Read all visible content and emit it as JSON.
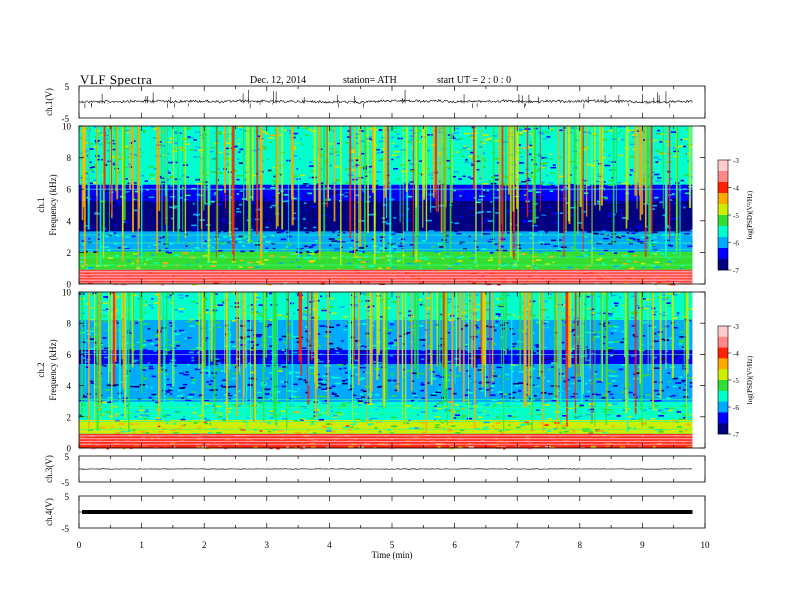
{
  "header": {
    "title": "VLF Spectra",
    "date": "Dec. 12, 2014",
    "station": "station= ATH",
    "start_ut": "start  UT  =   2  : 0  : 0"
  },
  "chart_data": [
    {
      "panel": "ch1-waveform",
      "type": "line",
      "ylabel": "ch.1(V)",
      "ylim": [
        -5,
        5
      ],
      "yticks": [
        "5",
        "-5"
      ],
      "xlim": [
        0,
        10
      ],
      "series": [
        {
          "description": "waveform around ~0.2 V baseline",
          "approx_level": 0.2
        }
      ]
    },
    {
      "panel": "ch1-spectrogram",
      "type": "heatmap",
      "ylabel": "ch.1",
      "ylabel2": "Frequency  (kHz)",
      "ylim": [
        0,
        10
      ],
      "yticks": [
        "0",
        "2",
        "4",
        "6",
        "8",
        "10"
      ],
      "xlim": [
        0,
        9.8
      ],
      "colorbar": {
        "label": "log(PSD)(V²/Hz)",
        "range": [
          -7,
          -3
        ],
        "ticks": [
          "-3",
          "-4",
          "-5",
          "-6",
          "-7"
        ]
      }
    },
    {
      "panel": "ch2-spectrogram",
      "type": "heatmap",
      "ylabel": "ch.2",
      "ylabel2": "Frequency  (kHz)",
      "ylim": [
        0,
        10
      ],
      "yticks": [
        "0",
        "2",
        "4",
        "6",
        "8",
        "10"
      ],
      "xlim": [
        0,
        9.8
      ],
      "colorbar": {
        "label": "log(PSD)(V²/Hz)",
        "range": [
          -7,
          -3
        ],
        "ticks": [
          "-3",
          "-4",
          "-5",
          "-6",
          "-7"
        ]
      }
    },
    {
      "panel": "ch3-waveform",
      "type": "line",
      "ylabel": "ch.3(V)",
      "ylim": [
        -5,
        5
      ],
      "yticks": [
        "5",
        "-5"
      ],
      "series": [
        {
          "description": "flat trace near 0 V",
          "approx_level": 0
        }
      ]
    },
    {
      "panel": "ch4-waveform",
      "type": "line",
      "ylabel": "ch.4(V)",
      "ylim": [
        -5,
        5
      ],
      "yticks": [
        "5",
        "-5"
      ],
      "series": [
        {
          "description": "thick flat trace near 0 V",
          "approx_level": 0
        }
      ]
    }
  ],
  "xaxis": {
    "label": "Time  (min)",
    "ticks": [
      "0",
      "1",
      "2",
      "3",
      "4",
      "5",
      "6",
      "7",
      "8",
      "9",
      "10"
    ],
    "range": [
      0,
      10
    ]
  },
  "colors": {
    "colormap": [
      "#000080",
      "#0000ff",
      "#00aaff",
      "#00ffcc",
      "#33dd33",
      "#ccee00",
      "#ffaa00",
      "#ff2200",
      "#ff8888",
      "#ffcccc"
    ]
  }
}
